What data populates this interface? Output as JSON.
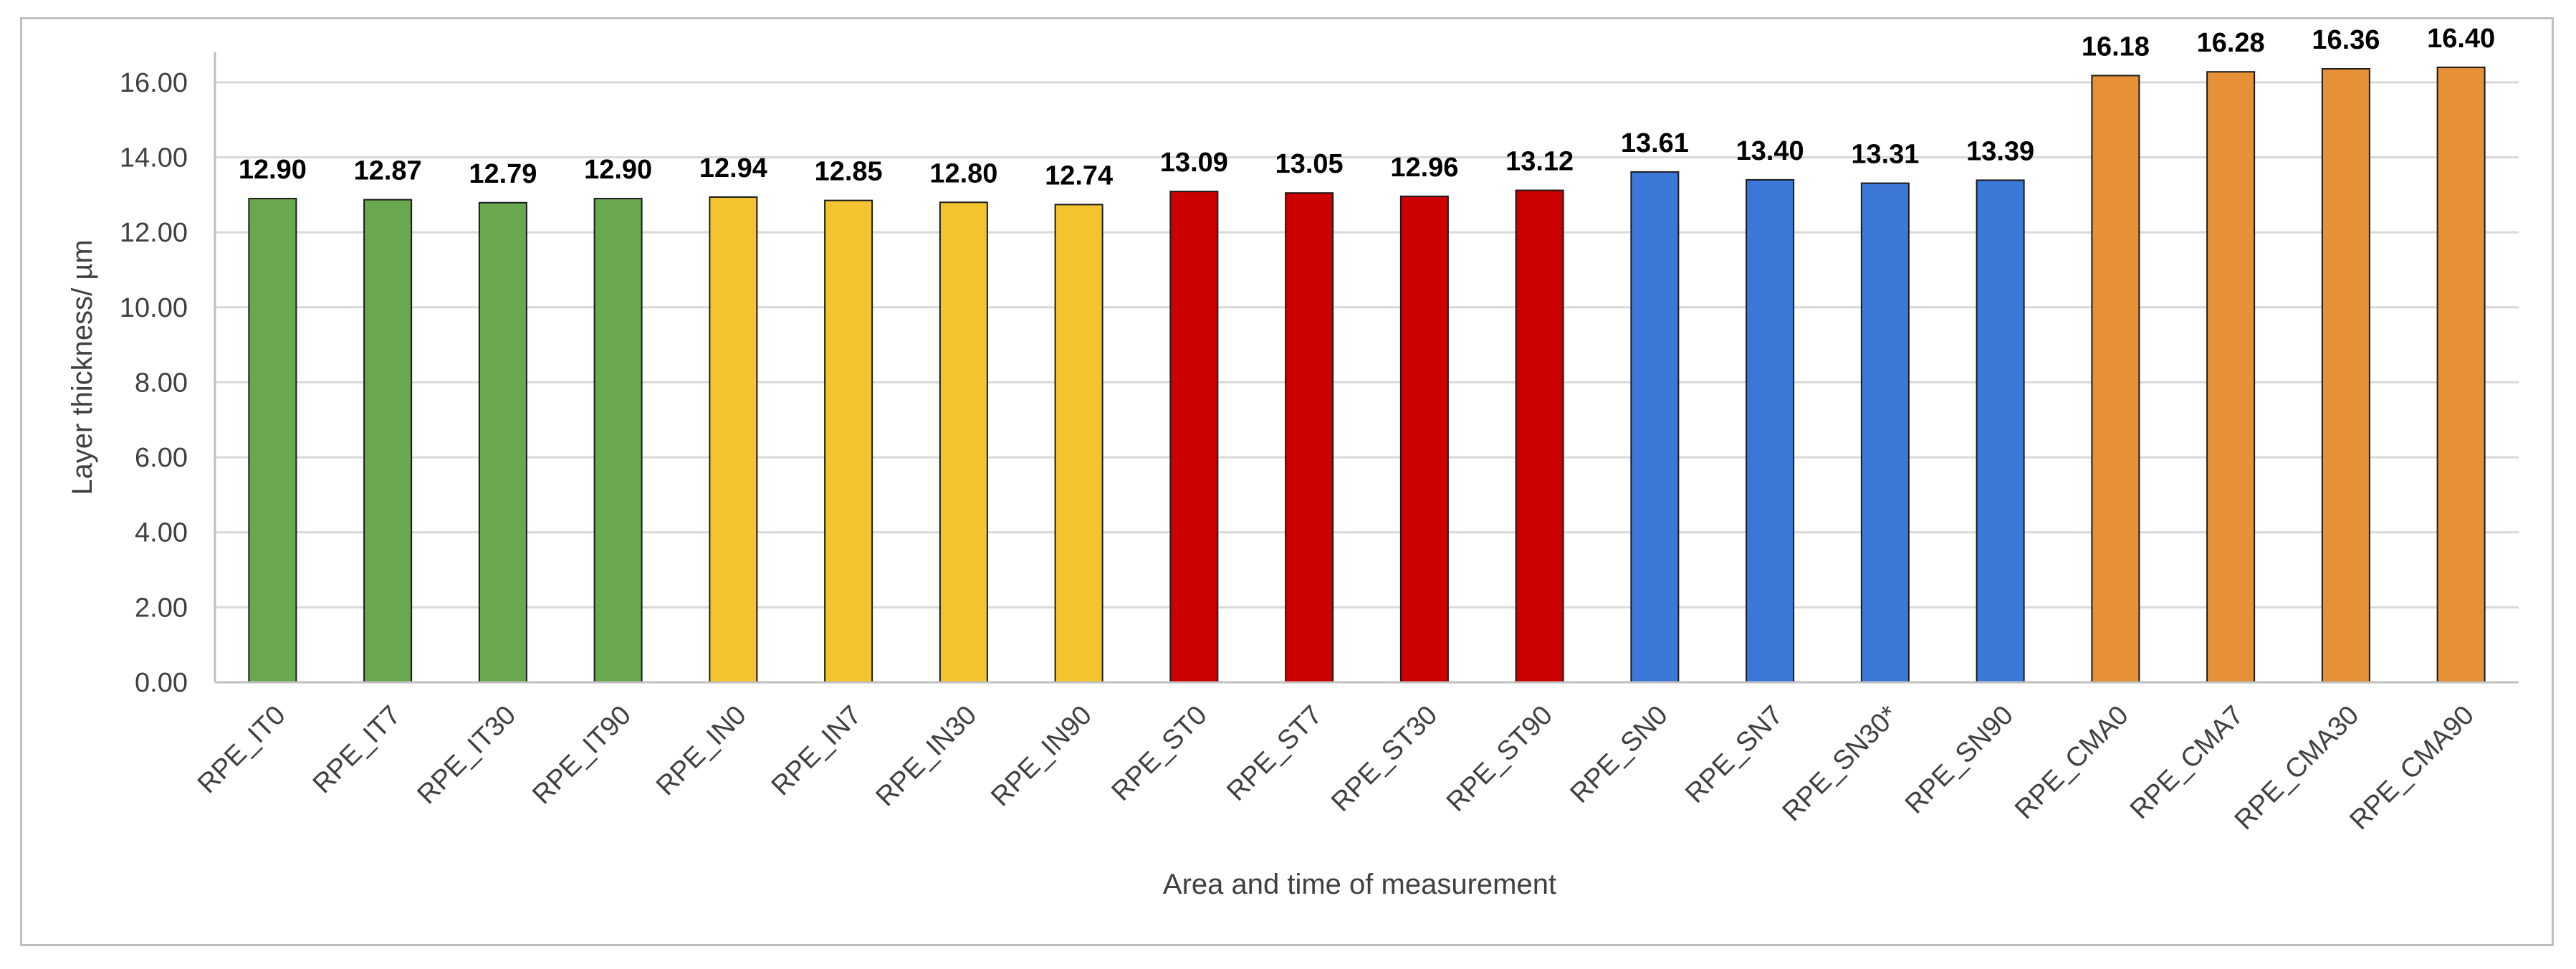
{
  "chart_data": {
    "type": "bar",
    "title": "",
    "xlabel": "Area and time of measurement",
    "ylabel": "Layer thickness/ µm",
    "ylim": [
      0,
      16.8
    ],
    "yticks": [
      "0.00",
      "2.00",
      "4.00",
      "6.00",
      "8.00",
      "10.00",
      "12.00",
      "14.00",
      "16.00"
    ],
    "grid": true,
    "legend": "none",
    "categories": [
      "RPE_IT0",
      "RPE_IT7",
      "RPE_IT30",
      "RPE_IT90",
      "RPE_IN0",
      "RPE_IN7",
      "RPE_IN30",
      "RPE_IN90",
      "RPE_ST0",
      "RPE_ST7",
      "RPE_ST30",
      "RPE_ST90",
      "RPE_SN0",
      "RPE_SN7",
      "RPE_SN30*",
      "RPE_SN90",
      "RPE_CMA0",
      "RPE_CMA7",
      "RPE_CMA30",
      "RPE_CMA90"
    ],
    "values": [
      12.9,
      12.87,
      12.79,
      12.9,
      12.94,
      12.85,
      12.8,
      12.74,
      13.09,
      13.05,
      12.96,
      13.12,
      13.61,
      13.4,
      13.31,
      13.39,
      16.18,
      16.28,
      16.36,
      16.4
    ],
    "data_labels": [
      "12.90",
      "12.87",
      "12.79",
      "12.90",
      "12.94",
      "12.85",
      "12.80",
      "12.74",
      "13.09",
      "13.05",
      "12.96",
      "13.12",
      "13.61",
      "13.40",
      "13.31",
      "13.39",
      "16.18",
      "16.28",
      "16.36",
      "16.40"
    ],
    "colors": [
      "#6aa84f",
      "#6aa84f",
      "#6aa84f",
      "#6aa84f",
      "#f4c430",
      "#f4c430",
      "#f4c430",
      "#f4c430",
      "#cc0000",
      "#cc0000",
      "#cc0000",
      "#cc0000",
      "#3c78d8",
      "#3c78d8",
      "#3c78d8",
      "#3c78d8",
      "#e69138",
      "#e69138",
      "#e69138",
      "#e69138"
    ]
  }
}
